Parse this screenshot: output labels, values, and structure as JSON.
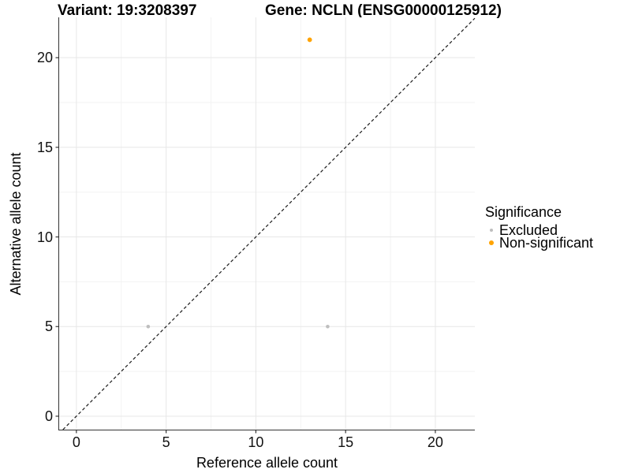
{
  "chart_data": {
    "type": "scatter",
    "titles": {
      "left": "Variant: 19:3208397",
      "right": "Gene: NCLN (ENSG00000125912)"
    },
    "xlabel": "Reference allele count",
    "ylabel": "Alternative allele count",
    "xlim": [
      -0.96,
      22.2
    ],
    "ylim": [
      -0.75,
      22.25
    ],
    "xticks": [
      0,
      5,
      10,
      15,
      20
    ],
    "yticks": [
      0,
      5,
      10,
      15,
      20
    ],
    "x_minor_ticks": [
      2.5,
      7.5,
      12.5,
      17.5
    ],
    "y_minor_ticks": [
      2.5,
      7.5,
      12.5,
      17.5
    ],
    "grid": {
      "on": true,
      "major_color": "#E7E7E7",
      "minor_color": "#F3F3F3"
    },
    "identity_line": {
      "equation": "y = x",
      "style": "dashed",
      "color": "#1A1A1A"
    },
    "axis_color": "#333333",
    "series": [
      {
        "name": "Excluded",
        "color": "#BEBEBE",
        "point_radius": 2.3,
        "points": [
          [
            4,
            5
          ],
          [
            14,
            5
          ]
        ]
      },
      {
        "name": "Non-significant",
        "color": "#FFA300",
        "point_radius": 2.9,
        "points": [
          [
            13,
            21
          ]
        ]
      }
    ],
    "legend": {
      "title": "Significance",
      "position": "right"
    }
  }
}
